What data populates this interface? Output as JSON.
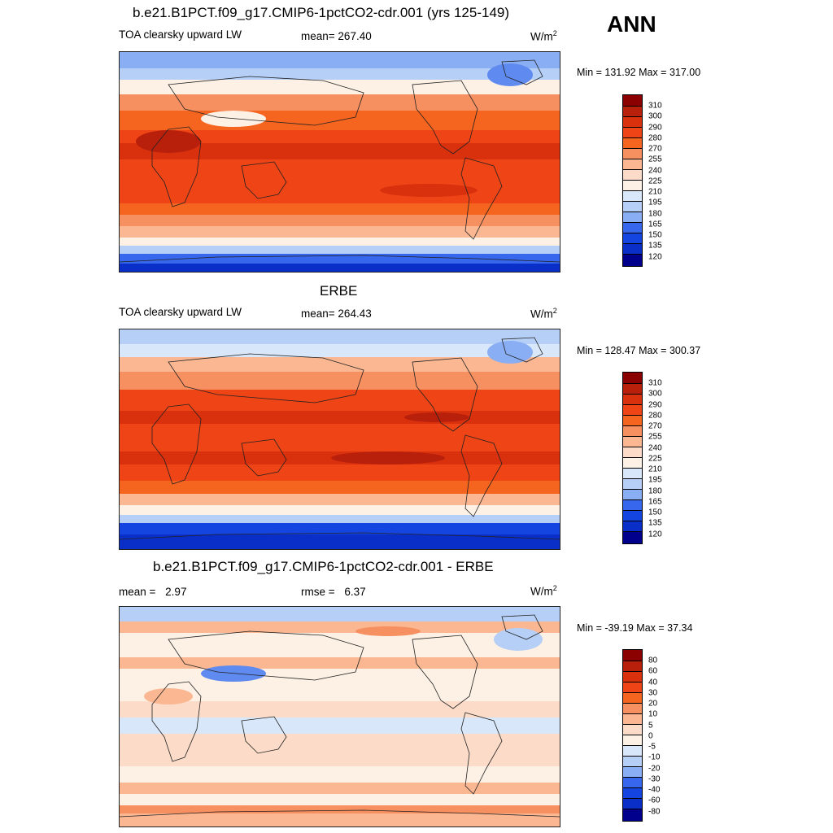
{
  "season": "ANN",
  "chart_data": [
    {
      "type": "heatmap",
      "panel": "model",
      "title": "b.e21.B1PCT.f09_g17.CMIP6-1pctCO2-cdr.001 (yrs 125-149)",
      "variable": "TOA clearsky upward LW",
      "stat_label": "mean=",
      "stat_value": "267.40",
      "units": "W/m",
      "units_exp": "2",
      "min_max": "Min = 131.92 Max = 317.00",
      "levels": [
        "310",
        "300",
        "290",
        "280",
        "270",
        "255",
        "240",
        "225",
        "210",
        "195",
        "180",
        "165",
        "150",
        "135",
        "120"
      ],
      "colors": [
        "#8b0000",
        "#b8200b",
        "#d9300d",
        "#ee4416",
        "#f5651f",
        "#f79060",
        "#fab792",
        "#fcdcc8",
        "#fdf0e4",
        "#d8e8fa",
        "#b5cff7",
        "#8aaef3",
        "#5f8aef",
        "#3767ec",
        "#1545e0",
        "#0a2fc8",
        "#0016a0",
        "#00008c"
      ],
      "contour_levels_count": 15
    },
    {
      "type": "heatmap",
      "panel": "obs",
      "title": "ERBE",
      "variable": "TOA clearsky upward LW",
      "stat_label": "mean=",
      "stat_value": "264.43",
      "units": "W/m",
      "units_exp": "2",
      "min_max": "Min = 128.47 Max = 300.37",
      "levels": [
        "310",
        "300",
        "290",
        "280",
        "270",
        "255",
        "240",
        "225",
        "210",
        "195",
        "180",
        "165",
        "150",
        "135",
        "120"
      ]
    },
    {
      "type": "heatmap",
      "panel": "diff",
      "title": "b.e21.B1PCT.f09_g17.CMIP6-1pctCO2-cdr.001 - ERBE",
      "stat_label": "mean =",
      "stat_value": "2.97",
      "stat2_label": "rmse =",
      "stat2_value": "6.37",
      "units": "W/m",
      "units_exp": "2",
      "min_max": "Min = -39.19 Max =  37.34",
      "levels": [
        "80",
        "60",
        "40",
        "30",
        "20",
        "10",
        "5",
        "0",
        "-5",
        "-10",
        "-20",
        "-30",
        "-40",
        "-60",
        "-80"
      ]
    }
  ]
}
